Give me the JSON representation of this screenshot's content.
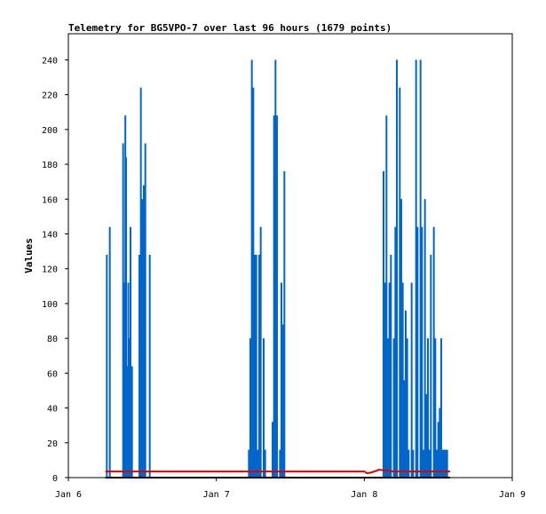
{
  "chart_data": {
    "type": "line",
    "title": "Telemetry for BG5VPO-7 over last 96 hours (1679 points)",
    "xlabel": "",
    "ylabel": "Values",
    "xlim": [
      0,
      3
    ],
    "ylim": [
      0,
      255
    ],
    "x_ticks": [
      {
        "value": 0,
        "label": "Jan 6"
      },
      {
        "value": 1,
        "label": "Jan 7"
      },
      {
        "value": 2,
        "label": "Jan 8"
      },
      {
        "value": 3,
        "label": "Jan 9"
      }
    ],
    "y_ticks": [
      0,
      20,
      40,
      60,
      80,
      100,
      120,
      140,
      160,
      180,
      200,
      220,
      240
    ],
    "grid": false,
    "series": [
      {
        "color": "#0066cc",
        "style": "spikes",
        "x": [
          0.26,
          0.28,
          0.37,
          0.38,
          0.385,
          0.39,
          0.4,
          0.405,
          0.41,
          0.42,
          0.425,
          0.43,
          0.48,
          0.49,
          0.5,
          0.51,
          0.52,
          0.55,
          1.22,
          1.23,
          1.24,
          1.245,
          1.25,
          1.26,
          1.27,
          1.28,
          1.29,
          1.3,
          1.32,
          1.33,
          1.38,
          1.39,
          1.4,
          1.41,
          1.43,
          1.44,
          1.45,
          1.46,
          2.13,
          2.14,
          2.15,
          2.16,
          2.17,
          2.18,
          2.2,
          2.21,
          2.22,
          2.24,
          2.25,
          2.26,
          2.27,
          2.28,
          2.29,
          2.3,
          2.32,
          2.33,
          2.35,
          2.36,
          2.38,
          2.39,
          2.4,
          2.41,
          2.42,
          2.43,
          2.44,
          2.45,
          2.47,
          2.48,
          2.49,
          2.5,
          2.51,
          2.52,
          2.53,
          2.54,
          2.55,
          2.56
        ],
        "y": [
          128,
          144,
          192,
          112,
          208,
          184,
          64,
          112,
          80,
          144,
          16,
          64,
          128,
          224,
          160,
          168,
          192,
          128,
          16,
          80,
          240,
          192,
          224,
          128,
          128,
          16,
          128,
          144,
          80,
          16,
          32,
          208,
          240,
          208,
          16,
          112,
          88,
          176,
          176,
          112,
          208,
          80,
          112,
          128,
          80,
          144,
          240,
          224,
          160,
          112,
          56,
          96,
          80,
          16,
          112,
          16,
          240,
          144,
          240,
          144,
          16,
          160,
          48,
          80,
          16,
          128,
          144,
          80,
          16,
          32,
          40,
          80,
          16,
          16,
          16,
          16
        ]
      },
      {
        "color": "#e00000",
        "style": "line",
        "x": [
          0.25,
          1.0,
          2.0,
          2.02,
          2.05,
          2.1,
          2.2,
          2.4,
          2.58
        ],
        "y": [
          3.5,
          3.5,
          3.5,
          2.5,
          3,
          4.5,
          3.5,
          3.5,
          3.5
        ]
      },
      {
        "color": "#000000",
        "style": "line",
        "x": [
          0.25,
          2.58
        ],
        "y": [
          0,
          0
        ]
      }
    ]
  }
}
